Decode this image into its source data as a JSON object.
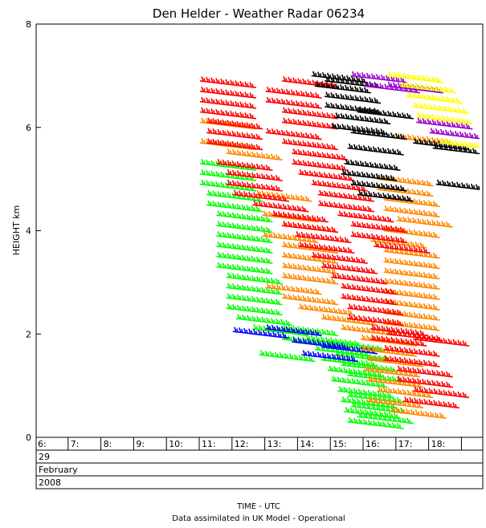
{
  "chart_data": {
    "type": "scatter",
    "title": "Den Helder - Weather Radar 06234",
    "ylabel": "HEIGHT km",
    "xlabel": "TIME - UTC",
    "footnote": "Data assimilated in UK Model - Operational",
    "ylim": [
      0,
      8
    ],
    "yticks": [
      "0",
      "2",
      "4",
      "6",
      "8"
    ],
    "xlim": [
      6,
      19
    ],
    "xtick_labels": [
      "6:",
      "7:",
      "8:",
      "9:",
      "10:",
      "11:",
      "12:",
      "13:",
      "14:",
      "15:",
      "16:",
      "17:",
      "18:"
    ],
    "date_rows": [
      "29",
      "February",
      "2008"
    ],
    "colors": {
      "green": "#00ff00",
      "blue": "#0000ff",
      "orange": "#ff8800",
      "red": "#ff0000",
      "black": "#000000",
      "purple": "#9900cc",
      "yellow": "#ffff00"
    },
    "series": [
      {
        "color": "#00ff00",
        "points": [
          [
            11.0,
            5.3
          ],
          [
            11.0,
            5.1
          ],
          [
            11.0,
            4.9
          ],
          [
            11.2,
            4.7
          ],
          [
            11.2,
            4.5
          ],
          [
            11.5,
            4.3
          ],
          [
            11.5,
            4.1
          ],
          [
            11.5,
            3.9
          ],
          [
            11.5,
            3.7
          ],
          [
            11.5,
            3.5
          ],
          [
            11.5,
            3.3
          ],
          [
            11.8,
            3.1
          ],
          [
            11.8,
            2.9
          ],
          [
            11.8,
            2.7
          ],
          [
            11.8,
            2.5
          ],
          [
            12.1,
            2.3
          ],
          [
            12.6,
            2.1
          ],
          [
            13.5,
            2.1
          ],
          [
            13.5,
            1.9
          ],
          [
            14.2,
            1.9
          ],
          [
            14.9,
            1.8
          ],
          [
            14.5,
            1.7
          ],
          [
            15.1,
            1.6
          ],
          [
            14.7,
            1.5
          ],
          [
            15.3,
            1.4
          ],
          [
            14.9,
            1.3
          ],
          [
            15.5,
            1.2
          ],
          [
            15.0,
            1.1
          ],
          [
            15.2,
            0.9
          ],
          [
            15.5,
            0.8
          ],
          [
            15.3,
            0.7
          ],
          [
            15.6,
            0.6
          ],
          [
            15.4,
            0.5
          ],
          [
            15.8,
            0.4
          ],
          [
            15.5,
            0.3
          ],
          [
            12.8,
            1.6
          ]
        ]
      },
      {
        "color": "#0000ff",
        "points": [
          [
            12.0,
            2.05
          ],
          [
            13.0,
            2.1
          ],
          [
            13.8,
            1.85
          ],
          [
            14.1,
            1.6
          ],
          [
            14.7,
            1.75
          ]
        ]
      },
      {
        "color": "#ff8800",
        "points": [
          [
            11.0,
            6.1
          ],
          [
            11.0,
            5.7
          ],
          [
            11.8,
            5.5
          ],
          [
            12.7,
            4.7
          ],
          [
            12.9,
            4.3
          ],
          [
            13.5,
            4.1
          ],
          [
            12.9,
            3.9
          ],
          [
            13.5,
            3.7
          ],
          [
            13.5,
            3.5
          ],
          [
            13.5,
            3.3
          ],
          [
            13.5,
            3.1
          ],
          [
            13.0,
            2.9
          ],
          [
            13.5,
            2.7
          ],
          [
            14.0,
            2.5
          ],
          [
            14.7,
            2.3
          ],
          [
            15.3,
            2.1
          ],
          [
            15.9,
            1.9
          ],
          [
            15.9,
            1.7
          ],
          [
            16.1,
            1.5
          ],
          [
            16.0,
            1.3
          ],
          [
            16.1,
            1.1
          ],
          [
            16.4,
            0.9
          ],
          [
            16.1,
            0.7
          ],
          [
            16.8,
            0.5
          ],
          [
            16.4,
            5.0
          ],
          [
            16.4,
            4.8
          ],
          [
            16.6,
            4.6
          ],
          [
            16.6,
            4.4
          ],
          [
            17.0,
            4.2
          ],
          [
            16.6,
            4.0
          ],
          [
            16.2,
            3.8
          ],
          [
            16.6,
            3.6
          ],
          [
            16.6,
            3.4
          ],
          [
            16.6,
            3.2
          ],
          [
            16.6,
            3.0
          ],
          [
            16.6,
            2.8
          ],
          [
            16.6,
            2.6
          ],
          [
            16.6,
            2.4
          ],
          [
            16.6,
            2.2
          ],
          [
            17.0,
            5.8
          ]
        ]
      },
      {
        "color": "#ff0000",
        "points": [
          [
            11.0,
            6.9
          ],
          [
            11.0,
            6.7
          ],
          [
            11.0,
            6.5
          ],
          [
            11.0,
            6.3
          ],
          [
            11.2,
            6.1
          ],
          [
            11.2,
            5.9
          ],
          [
            11.2,
            5.7
          ],
          [
            11.5,
            5.3
          ],
          [
            11.8,
            5.1
          ],
          [
            11.8,
            4.9
          ],
          [
            12.0,
            4.7
          ],
          [
            12.6,
            4.5
          ],
          [
            13.2,
            4.3
          ],
          [
            13.5,
            4.1
          ],
          [
            13.9,
            3.9
          ],
          [
            14.0,
            3.7
          ],
          [
            14.4,
            3.5
          ],
          [
            14.7,
            3.3
          ],
          [
            15.0,
            3.1
          ],
          [
            15.3,
            2.9
          ],
          [
            15.3,
            2.7
          ],
          [
            15.5,
            2.5
          ],
          [
            15.5,
            2.3
          ],
          [
            16.2,
            2.1
          ],
          [
            16.2,
            1.9
          ],
          [
            16.6,
            1.7
          ],
          [
            16.6,
            1.5
          ],
          [
            17.0,
            1.3
          ],
          [
            17.0,
            1.1
          ],
          [
            17.5,
            0.9
          ],
          [
            17.2,
            0.7
          ],
          [
            13.5,
            6.9
          ],
          [
            13.0,
            6.7
          ],
          [
            13.0,
            6.5
          ],
          [
            13.5,
            6.3
          ],
          [
            13.5,
            6.1
          ],
          [
            13.0,
            5.9
          ],
          [
            13.5,
            5.7
          ],
          [
            13.8,
            5.5
          ],
          [
            13.8,
            5.3
          ],
          [
            14.0,
            5.1
          ],
          [
            14.4,
            4.9
          ],
          [
            14.6,
            4.7
          ],
          [
            14.6,
            4.5
          ],
          [
            15.2,
            4.3
          ],
          [
            15.6,
            4.1
          ],
          [
            15.6,
            3.9
          ],
          [
            16.3,
            3.7
          ],
          [
            16.7,
            2.0
          ],
          [
            17.5,
            1.9
          ]
        ]
      },
      {
        "color": "#000000",
        "points": [
          [
            14.4,
            7.0
          ],
          [
            14.8,
            6.9
          ],
          [
            14.5,
            6.8
          ],
          [
            14.8,
            6.6
          ],
          [
            14.8,
            6.4
          ],
          [
            15.1,
            6.2
          ],
          [
            15.0,
            6.0
          ],
          [
            15.8,
            6.3
          ],
          [
            15.6,
            5.9
          ],
          [
            15.5,
            5.6
          ],
          [
            15.4,
            5.3
          ],
          [
            15.3,
            5.1
          ],
          [
            15.6,
            4.9
          ],
          [
            15.8,
            4.7
          ],
          [
            17.5,
            5.7
          ],
          [
            18.1,
            5.6
          ],
          [
            18.2,
            4.9
          ]
        ]
      },
      {
        "color": "#9900cc",
        "points": [
          [
            15.6,
            7.0
          ],
          [
            16.0,
            6.8
          ],
          [
            16.7,
            6.8
          ],
          [
            17.6,
            6.1
          ],
          [
            18.0,
            5.9
          ]
        ]
      },
      {
        "color": "#ffff00",
        "points": [
          [
            16.7,
            7.0
          ],
          [
            17.1,
            6.8
          ],
          [
            17.3,
            6.6
          ],
          [
            17.5,
            6.4
          ],
          [
            17.6,
            6.2
          ],
          [
            18.3,
            5.7
          ]
        ]
      }
    ]
  }
}
